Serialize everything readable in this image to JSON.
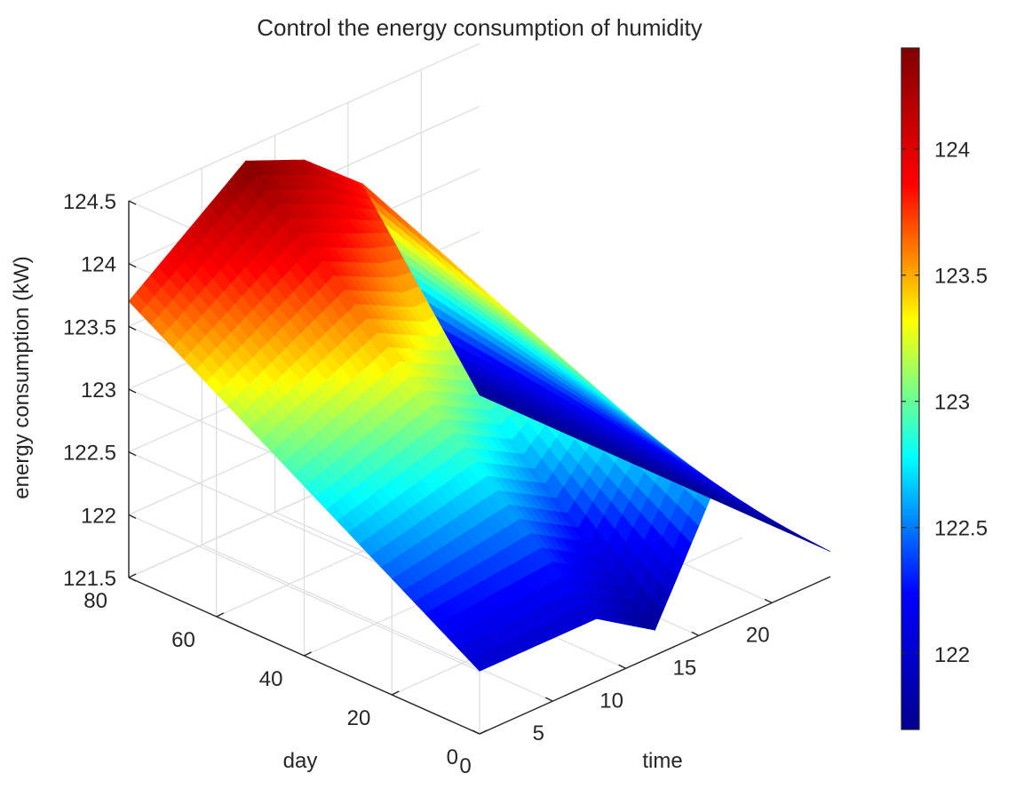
{
  "chart_data": {
    "type": "surface",
    "title": "Control the energy consumption of humidity",
    "xlabel": "time",
    "ylabel": "day",
    "zlabel": "energy consumption (kW)",
    "x_ticks": [
      "0",
      "5",
      "10",
      "15",
      "20"
    ],
    "y_ticks": [
      "0",
      "20",
      "40",
      "60",
      "80"
    ],
    "z_ticks": [
      "121.5",
      "122",
      "122.5",
      "123",
      "123.5",
      "124",
      "124.5"
    ],
    "colorbar_ticks": [
      "122",
      "122.5",
      "123",
      "123.5",
      "124"
    ],
    "colormap": "jet",
    "colormap_stops": [
      "#00008f",
      "#0000ff",
      "#00ffff",
      "#ffff00",
      "#ff0000",
      "#800000"
    ],
    "xlim": [
      0,
      24
    ],
    "ylim": [
      0,
      80
    ],
    "zlim": [
      121.5,
      124.5
    ],
    "clim": [
      121.7,
      124.4
    ],
    "grid": true,
    "surface": {
      "time": [
        0,
        8,
        12,
        16,
        24
      ],
      "day": [
        0,
        80
      ],
      "energy": [
        [
          122.0,
          122.0,
          121.7,
          122.6,
          121.7
        ],
        [
          123.7,
          124.4,
          124.2,
          123.8,
          121.7
        ]
      ]
    }
  }
}
